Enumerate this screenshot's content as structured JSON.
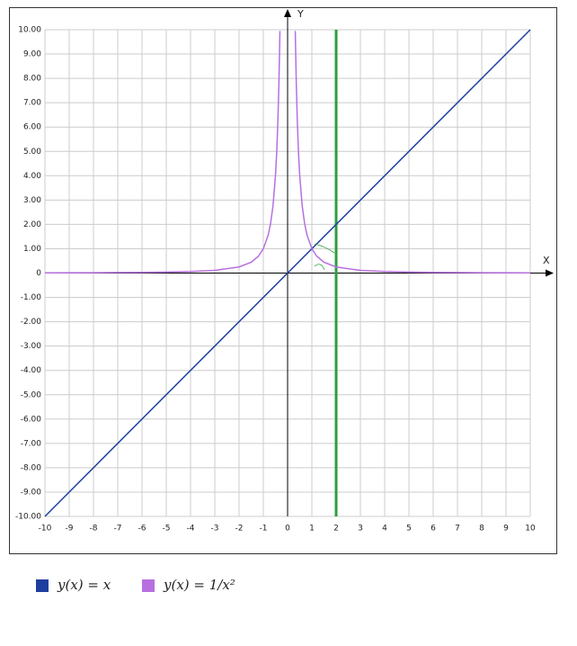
{
  "chart_data": {
    "type": "line",
    "xlabel": "X",
    "ylabel": "Y",
    "xlim": [
      -10,
      10
    ],
    "ylim": [
      -10,
      10
    ],
    "xticks": [
      -10,
      -9,
      -8,
      -7,
      -6,
      -5,
      -4,
      -3,
      -2,
      -1,
      0,
      1,
      2,
      3,
      4,
      5,
      6,
      7,
      8,
      9,
      10
    ],
    "yticks": [
      {
        "value": 10,
        "label": "10.00"
      },
      {
        "value": 9,
        "label": "9.00"
      },
      {
        "value": 8,
        "label": "8.00"
      },
      {
        "value": 7,
        "label": "7.00"
      },
      {
        "value": 6,
        "label": "6.00"
      },
      {
        "value": 5,
        "label": "5.00"
      },
      {
        "value": 4,
        "label": "4.00"
      },
      {
        "value": 3,
        "label": "3.00"
      },
      {
        "value": 2,
        "label": "2.00"
      },
      {
        "value": 1,
        "label": "1.00"
      },
      0,
      {
        "value": -1,
        "label": "-1.00"
      },
      {
        "value": -2,
        "label": "-2.00"
      },
      {
        "value": -3,
        "label": "-3.00"
      },
      {
        "value": -4,
        "label": "-4.00"
      },
      {
        "value": -5,
        "label": "-5.00"
      },
      {
        "value": -6,
        "label": "-6.00"
      },
      {
        "value": -7,
        "label": "-7.00"
      },
      {
        "value": -8,
        "label": "-8.00"
      },
      {
        "value": -9,
        "label": "-9.00"
      },
      {
        "value": -10,
        "label": "-10.00"
      }
    ],
    "grid": true,
    "series": [
      {
        "name": "y(x) = x",
        "color": "#1f3f9f",
        "x": [
          -10,
          10
        ],
        "values": [
          -10,
          10
        ]
      },
      {
        "name": "y(x) = 1/x²",
        "color": "#b86fe0",
        "x": [
          -10,
          -8,
          -6,
          -5,
          -4,
          -3,
          -2,
          -1.5,
          -1.2,
          -1,
          -0.8,
          -0.7,
          -0.6,
          -0.5,
          -0.45,
          -0.4,
          -0.36,
          -0.33,
          -0.317,
          0,
          0.317,
          0.33,
          0.36,
          0.4,
          0.45,
          0.5,
          0.6,
          0.7,
          0.8,
          1,
          1.2,
          1.5,
          2,
          3,
          4,
          5,
          6,
          8,
          10
        ],
        "values": [
          0.01,
          0.016,
          0.028,
          0.04,
          0.063,
          0.111,
          0.25,
          0.444,
          0.694,
          1,
          1.563,
          2.041,
          2.778,
          4,
          4.938,
          6.25,
          7.716,
          9.183,
          9.951,
          null,
          9.951,
          9.183,
          7.716,
          6.25,
          4.938,
          4,
          2.778,
          2.041,
          1.563,
          1,
          0.694,
          0.444,
          0.25,
          0.111,
          0.063,
          0.04,
          0.028,
          0.016,
          0.01
        ]
      }
    ],
    "vline": {
      "x": 2,
      "color": "#2e9e3e"
    }
  }
}
